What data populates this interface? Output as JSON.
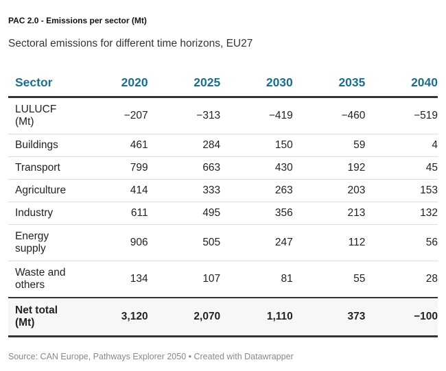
{
  "title": "PAC 2.0 - Emissions per sector (Mt)",
  "subtitle": "Sectoral emissions for different time horizons, EU27",
  "footer": "Source: CAN Europe, Pathways Explorer 2050 • Created with Datawrapper",
  "colors": {
    "header_text": "#1b6e8a",
    "rule": "#333333",
    "row_divider": "#dddddd",
    "footer_text": "#888888"
  },
  "chart_data": {
    "type": "table",
    "title": "PAC 2.0 - Emissions per sector (Mt)",
    "subtitle": "Sectoral emissions for different time horizons, EU27",
    "columns": [
      "Sector",
      "2020",
      "2025",
      "2030",
      "2035",
      "2040"
    ],
    "rows": [
      {
        "sector": [
          "LULUCF",
          "(Mt)"
        ],
        "values": [
          "−207",
          "−313",
          "−419",
          "−460",
          "−519"
        ],
        "tall": true
      },
      {
        "sector": [
          "Buildings"
        ],
        "values": [
          "461",
          "284",
          "150",
          "59",
          "4"
        ],
        "tall": false
      },
      {
        "sector": [
          "Transport"
        ],
        "values": [
          "799",
          "663",
          "430",
          "192",
          "45"
        ],
        "tall": false
      },
      {
        "sector": [
          "Agriculture"
        ],
        "values": [
          "414",
          "333",
          "263",
          "203",
          "153"
        ],
        "tall": false
      },
      {
        "sector": [
          "Industry"
        ],
        "values": [
          "611",
          "495",
          "356",
          "213",
          "132"
        ],
        "tall": false
      },
      {
        "sector": [
          "Energy",
          "supply"
        ],
        "values": [
          "906",
          "505",
          "247",
          "112",
          "56"
        ],
        "tall": true
      },
      {
        "sector": [
          "Waste and",
          "others"
        ],
        "values": [
          "134",
          "107",
          "81",
          "55",
          "28"
        ],
        "tall": true
      }
    ],
    "total": {
      "sector": [
        "Net total",
        "(Mt)"
      ],
      "values": [
        "3,120",
        "2,070",
        "1,110",
        "373",
        "−100"
      ]
    },
    "source": "Source: CAN Europe, Pathways Explorer 2050 • Created with Datawrapper"
  }
}
